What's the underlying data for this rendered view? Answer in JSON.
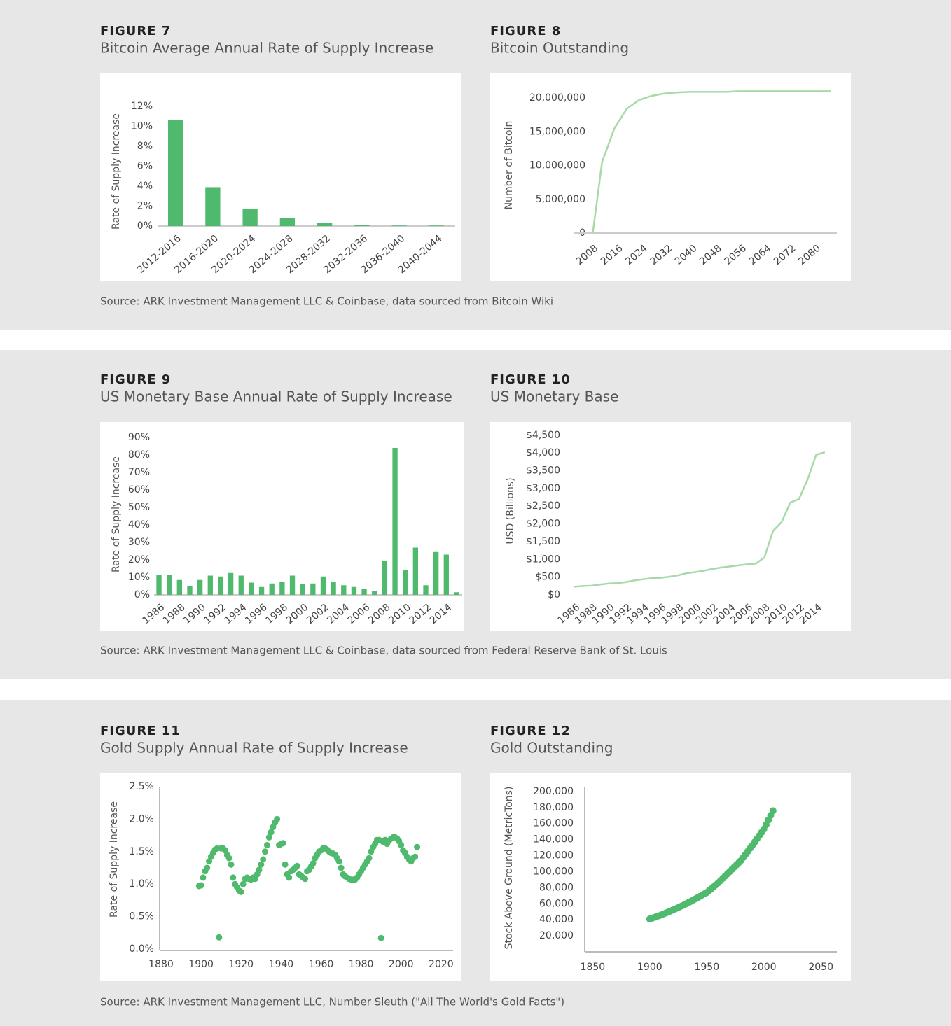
{
  "chart_data": [
    {
      "type": "bar",
      "figure": "FIGURE 7",
      "title": "Bitcoin Average Annual Rate of Supply Increase",
      "ylabel": "Rate of Supply Increase",
      "color": "#4fba6e",
      "categories": [
        "2012-2016",
        "2016-2020",
        "2020-2024",
        "2024-2028",
        "2028-2032",
        "2032-2036",
        "2036-2040",
        "2040-2044"
      ],
      "values": [
        10.6,
        3.9,
        1.7,
        0.8,
        0.35,
        0.1,
        0.05,
        0.05
      ],
      "ylim": [
        0,
        12
      ],
      "yticks": [
        {
          "value": 0,
          "label": "0%"
        },
        {
          "value": 2,
          "label": "2%"
        },
        {
          "value": 4,
          "label": "4%"
        },
        {
          "value": 6,
          "label": "6%"
        },
        {
          "value": 8,
          "label": "8%"
        },
        {
          "value": 10,
          "label": "10%"
        },
        {
          "value": 12,
          "label": "12%"
        }
      ]
    },
    {
      "type": "line",
      "figure": "FIGURE 8",
      "title": "Bitcoin Outstanding",
      "ylabel": "Number of Bitcoin",
      "color": "#a8d9a9",
      "x": [
        2009,
        2012,
        2016,
        2020,
        2024,
        2028,
        2032,
        2036,
        2040,
        2044,
        2048,
        2052,
        2056,
        2060,
        2064,
        2068,
        2072,
        2076,
        2080,
        2084,
        2086
      ],
      "values": [
        0,
        10500000,
        15500000,
        18400000,
        19700000,
        20300000,
        20650000,
        20800000,
        20900000,
        20900000,
        20900000,
        20900000,
        21000000,
        21000000,
        21000000,
        21000000,
        21000000,
        21000000,
        21000000,
        21000000,
        21000000
      ],
      "xlim": [
        2003,
        2088
      ],
      "xticks": [
        2008,
        2016,
        2024,
        2032,
        2040,
        2048,
        2056,
        2064,
        2072,
        2080
      ],
      "ylim": [
        0,
        22000000
      ],
      "yticks": [
        0,
        {
          "value": 5000000,
          "label": "5,000,000"
        },
        {
          "value": 10000000,
          "label": "10,000,000"
        },
        {
          "value": 15000000,
          "label": "15,000,000"
        },
        {
          "value": 20000000,
          "label": "20,000,000"
        }
      ]
    },
    {
      "type": "bar",
      "figure": "FIGURE 9",
      "title": "US Monetary Base Annual Rate of Supply Increase",
      "ylabel": "Rate of Supply Increase",
      "color": "#4fba6e",
      "categories": [
        "1986",
        null,
        "1988",
        null,
        "1990",
        null,
        "1992",
        null,
        "1994",
        null,
        "1996",
        null,
        "1998",
        null,
        "2000",
        null,
        "2002",
        null,
        "2004",
        null,
        "2006",
        null,
        "2008",
        null,
        "2010",
        null,
        "2012",
        null,
        "2014",
        null
      ],
      "values": [
        11.5,
        11.5,
        8.5,
        5,
        8.5,
        11,
        10.5,
        12.5,
        11,
        7,
        4.5,
        6.5,
        7.5,
        11,
        6,
        6.5,
        10.5,
        7.5,
        5.5,
        4.5,
        3.5,
        2,
        19.5,
        84,
        14,
        27,
        5.5,
        24.5,
        23,
        1.5
      ],
      "ylim": [
        0,
        90
      ],
      "yticks": [
        {
          "value": 0,
          "label": "0%"
        },
        {
          "value": 10,
          "label": "10%"
        },
        {
          "value": 20,
          "label": "20%"
        },
        {
          "value": 30,
          "label": "30%"
        },
        {
          "value": 40,
          "label": "40%"
        },
        {
          "value": 50,
          "label": "50%"
        },
        {
          "value": 60,
          "label": "60%"
        },
        {
          "value": 70,
          "label": "70%"
        },
        {
          "value": 80,
          "label": "80%"
        },
        {
          "value": 90,
          "label": "90%"
        }
      ]
    },
    {
      "type": "line",
      "figure": "FIGURE 10",
      "title": "US Monetary Base",
      "ylabel": "USD (Billions)",
      "color": "#a8d9a9",
      "categories": [
        "1986",
        null,
        "1988",
        null,
        "1990",
        null,
        "1992",
        null,
        "1994",
        null,
        "1996",
        null,
        "1998",
        null,
        "2000",
        null,
        "2002",
        null,
        "2004",
        null,
        "2006",
        null,
        "2008",
        null,
        "2010",
        null,
        "2012",
        null,
        "2014",
        null
      ],
      "values": [
        230,
        250,
        260,
        290,
        320,
        330,
        360,
        410,
        440,
        470,
        480,
        510,
        550,
        610,
        640,
        680,
        730,
        770,
        800,
        830,
        860,
        880,
        1050,
        1800,
        2050,
        2600,
        2700,
        3250,
        3950,
        4020
      ],
      "ylim": [
        0,
        4500
      ],
      "yticks": [
        {
          "value": 0,
          "label": "$0"
        },
        {
          "value": 500,
          "label": "$500"
        },
        {
          "value": 1000,
          "label": "$1,000"
        },
        {
          "value": 1500,
          "label": "$1,500"
        },
        {
          "value": 2000,
          "label": "$2,000"
        },
        {
          "value": 2500,
          "label": "$2,500"
        },
        {
          "value": 3000,
          "label": "$3,000"
        },
        {
          "value": 3500,
          "label": "$3,500"
        },
        {
          "value": 4000,
          "label": "$4,000"
        },
        {
          "value": 4500,
          "label": "$4,500"
        }
      ]
    },
    {
      "type": "scatter",
      "figure": "FIGURE 11",
      "title": "Gold Supply Annual Rate of Supply Increase",
      "ylabel": "Rate of Supply Increase",
      "color": "#4fba6e",
      "x": [
        1899,
        1900,
        1901,
        1902,
        1903,
        1904,
        1905,
        1906,
        1907,
        1908,
        1909,
        1910,
        1911,
        1912,
        1913,
        1914,
        1915,
        1916,
        1917,
        1918,
        1919,
        1920,
        1921,
        1922,
        1923,
        1924,
        1925,
        1926,
        1927,
        1928,
        1929,
        1930,
        1931,
        1932,
        1933,
        1934,
        1935,
        1936,
        1937,
        1938,
        1939,
        1940,
        1941,
        1942,
        1943,
        1944,
        1945,
        1946,
        1947,
        1948,
        1949,
        1950,
        1951,
        1952,
        1953,
        1954,
        1955,
        1956,
        1957,
        1958,
        1959,
        1960,
        1961,
        1962,
        1963,
        1964,
        1965,
        1966,
        1967,
        1968,
        1969,
        1970,
        1971,
        1972,
        1973,
        1974,
        1975,
        1976,
        1977,
        1978,
        1979,
        1980,
        1981,
        1982,
        1983,
        1984,
        1985,
        1986,
        1987,
        1988,
        1989,
        1990,
        1991,
        1992,
        1993,
        1994,
        1995,
        1996,
        1997,
        1998,
        1999,
        2000,
        2001,
        2002,
        2003,
        2004,
        2005,
        2006,
        2007,
        2008
      ],
      "values": [
        0.97,
        0.98,
        1.1,
        1.2,
        1.25,
        1.35,
        1.42,
        1.48,
        1.53,
        1.55,
        0.18,
        1.55,
        1.55,
        1.52,
        1.45,
        1.4,
        1.3,
        1.1,
        1.0,
        0.95,
        0.9,
        0.88,
        1.0,
        1.08,
        1.1,
        1.08,
        1.07,
        1.1,
        1.08,
        1.15,
        1.22,
        1.3,
        1.38,
        1.5,
        1.6,
        1.72,
        1.8,
        1.88,
        1.95,
        2.0,
        1.6,
        1.62,
        1.63,
        1.3,
        1.15,
        1.1,
        1.2,
        1.22,
        1.25,
        1.28,
        1.15,
        1.13,
        1.1,
        1.08,
        1.2,
        1.22,
        1.27,
        1.32,
        1.4,
        1.45,
        1.5,
        1.52,
        1.55,
        1.55,
        1.53,
        1.5,
        1.48,
        1.47,
        1.45,
        1.4,
        1.35,
        1.25,
        1.15,
        1.12,
        1.1,
        1.08,
        1.07,
        1.07,
        1.07,
        1.1,
        1.15,
        1.2,
        1.25,
        1.3,
        1.35,
        1.4,
        1.5,
        1.57,
        1.62,
        1.68,
        1.68,
        0.17,
        1.65,
        1.68,
        1.62,
        1.67,
        1.7,
        1.72,
        1.72,
        1.7,
        1.66,
        1.6,
        1.52,
        1.48,
        1.42,
        1.38,
        1.35,
        1.4,
        1.42,
        1.57
      ],
      "xlim": [
        1880,
        2026
      ],
      "xticks": [
        1880,
        1900,
        1920,
        1940,
        1960,
        1980,
        2000,
        2020
      ],
      "ylim": [
        0,
        2.5
      ],
      "yticks": [
        {
          "value": 0,
          "label": "0.0%"
        },
        {
          "value": 0.5,
          "label": "0.5%"
        },
        {
          "value": 1,
          "label": "1.0%"
        },
        {
          "value": 1.5,
          "label": "1.5%"
        },
        {
          "value": 2,
          "label": "2.0%"
        },
        {
          "value": 2.5,
          "label": "2.5%"
        }
      ]
    },
    {
      "type": "scatter",
      "figure": "FIGURE 12",
      "title": "Gold Outstanding",
      "ylabel": "Stock Above Ground (MetricTons)",
      "color": "#4fba6e",
      "x": [
        1900,
        1902,
        1904,
        1906,
        1908,
        1910,
        1912,
        1914,
        1916,
        1918,
        1920,
        1922,
        1924,
        1926,
        1928,
        1930,
        1932,
        1934,
        1936,
        1938,
        1940,
        1942,
        1944,
        1946,
        1948,
        1950,
        1952,
        1954,
        1956,
        1958,
        1960,
        1962,
        1964,
        1966,
        1968,
        1970,
        1972,
        1974,
        1976,
        1978,
        1980,
        1982,
        1984,
        1986,
        1988,
        1990,
        1992,
        1994,
        1996,
        1998,
        2000,
        2002,
        2004,
        2006,
        2008
      ],
      "values": [
        41000,
        42000,
        43000,
        44000,
        45000,
        46000,
        47200,
        48400,
        49600,
        50800,
        52000,
        53300,
        54600,
        55900,
        57200,
        58500,
        60000,
        61500,
        63000,
        64500,
        66000,
        67600,
        69200,
        70800,
        72400,
        74000,
        76400,
        78800,
        81200,
        83600,
        86000,
        88800,
        91600,
        94400,
        97200,
        100000,
        102800,
        105600,
        108400,
        111200,
        114000,
        117800,
        121600,
        125400,
        129200,
        133000,
        137000,
        141000,
        145000,
        149000,
        153000,
        158700,
        164500,
        170200,
        176000
      ],
      "xlim": [
        1843,
        2064
      ],
      "xticks": [
        1850,
        1900,
        1950,
        2000,
        2050
      ],
      "ylim": [
        0,
        206000
      ],
      "yticks": [
        {
          "value": 20000,
          "label": "20,000"
        },
        {
          "value": 40000,
          "label": "40,000"
        },
        {
          "value": 60000,
          "label": "60,000"
        },
        {
          "value": 80000,
          "label": "80,000"
        },
        {
          "value": 100000,
          "label": "100,000"
        },
        {
          "value": 120000,
          "label": "120,000"
        },
        {
          "value": 140000,
          "label": "140,000"
        },
        {
          "value": 160000,
          "label": "160,000"
        },
        {
          "value": 180000,
          "label": "180,000"
        },
        {
          "value": 200000,
          "label": "200,000"
        }
      ]
    }
  ],
  "sources": [
    "Source: ARK Investment Management LLC & Coinbase, data sourced from Bitcoin Wiki",
    "Source: ARK Investment Management LLC & Coinbase, data sourced from Federal Reserve Bank of St. Louis",
    "Source: ARK Investment Management LLC, Number Sleuth (\"All The World's Gold Facts\")"
  ]
}
